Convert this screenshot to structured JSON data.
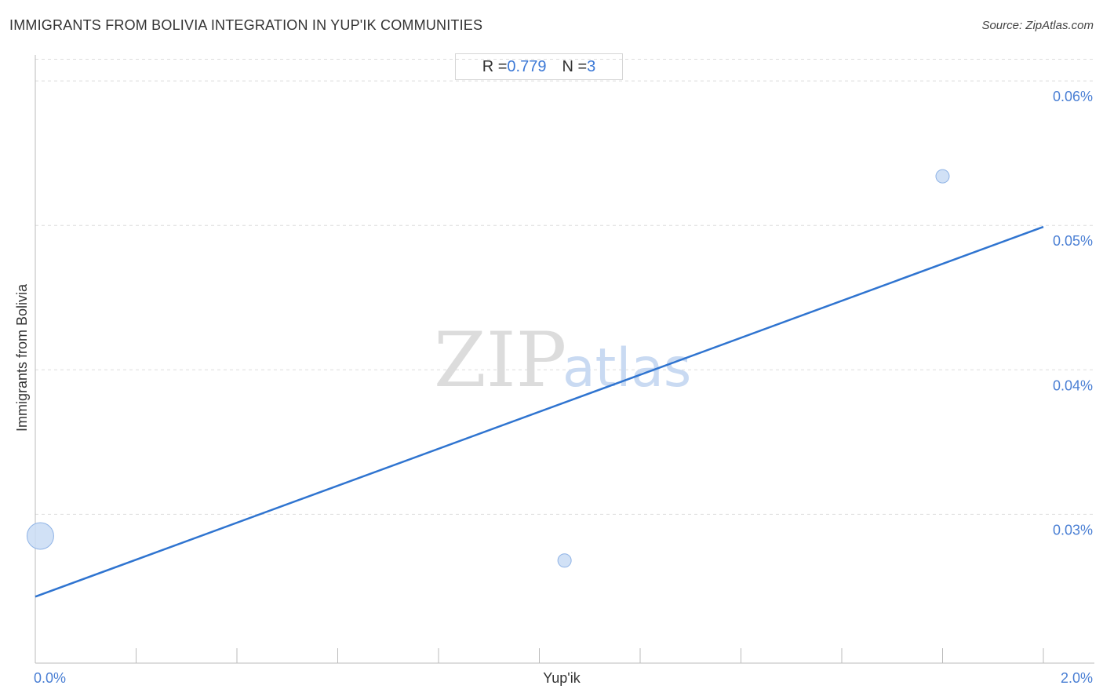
{
  "header": {
    "title": "IMMIGRANTS FROM BOLIVIA INTEGRATION IN YUP'IK COMMUNITIES",
    "source": "Source: ZipAtlas.com"
  },
  "stats": {
    "r_label": "R = ",
    "r_value": "0.779",
    "n_label": "N = ",
    "n_value": "3"
  },
  "watermark": {
    "zip": "ZIP",
    "atlas": "atlas"
  },
  "colors": {
    "accent": "#3b78d6",
    "trend": "#2f74d0",
    "point_fill": "#c9dcf5",
    "point_stroke": "#8fb3e6",
    "grid": "#dddddd"
  },
  "chart_data": {
    "type": "scatter",
    "title": "IMMIGRANTS FROM BOLIVIA INTEGRATION IN YUP'IK COMMUNITIES",
    "xlabel": "Yup'ik",
    "ylabel": "Immigrants from Bolivia",
    "xlim": [
      0.0,
      2.0
    ],
    "ylim": [
      0.0197,
      0.0618
    ],
    "x_tick_labels": [
      {
        "value": 0.0,
        "label": "0.0%"
      },
      {
        "value": 2.0,
        "label": "2.0%"
      }
    ],
    "y_ticks": [
      {
        "value": 0.03,
        "label": "0.03%"
      },
      {
        "value": 0.04,
        "label": "0.04%"
      },
      {
        "value": 0.05,
        "label": "0.05%"
      },
      {
        "value": 0.06,
        "label": "0.06%"
      }
    ],
    "points": [
      {
        "x": 0.01,
        "y": 0.0285,
        "size": "large"
      },
      {
        "x": 1.05,
        "y": 0.0268,
        "size": "small"
      },
      {
        "x": 1.8,
        "y": 0.0534,
        "size": "small"
      }
    ],
    "trendline": {
      "x": [
        0.0,
        2.0
      ],
      "y": [
        0.0243,
        0.0499
      ]
    },
    "r": 0.779,
    "n": 3,
    "grid": "horizontal dashed",
    "legend": "none"
  }
}
